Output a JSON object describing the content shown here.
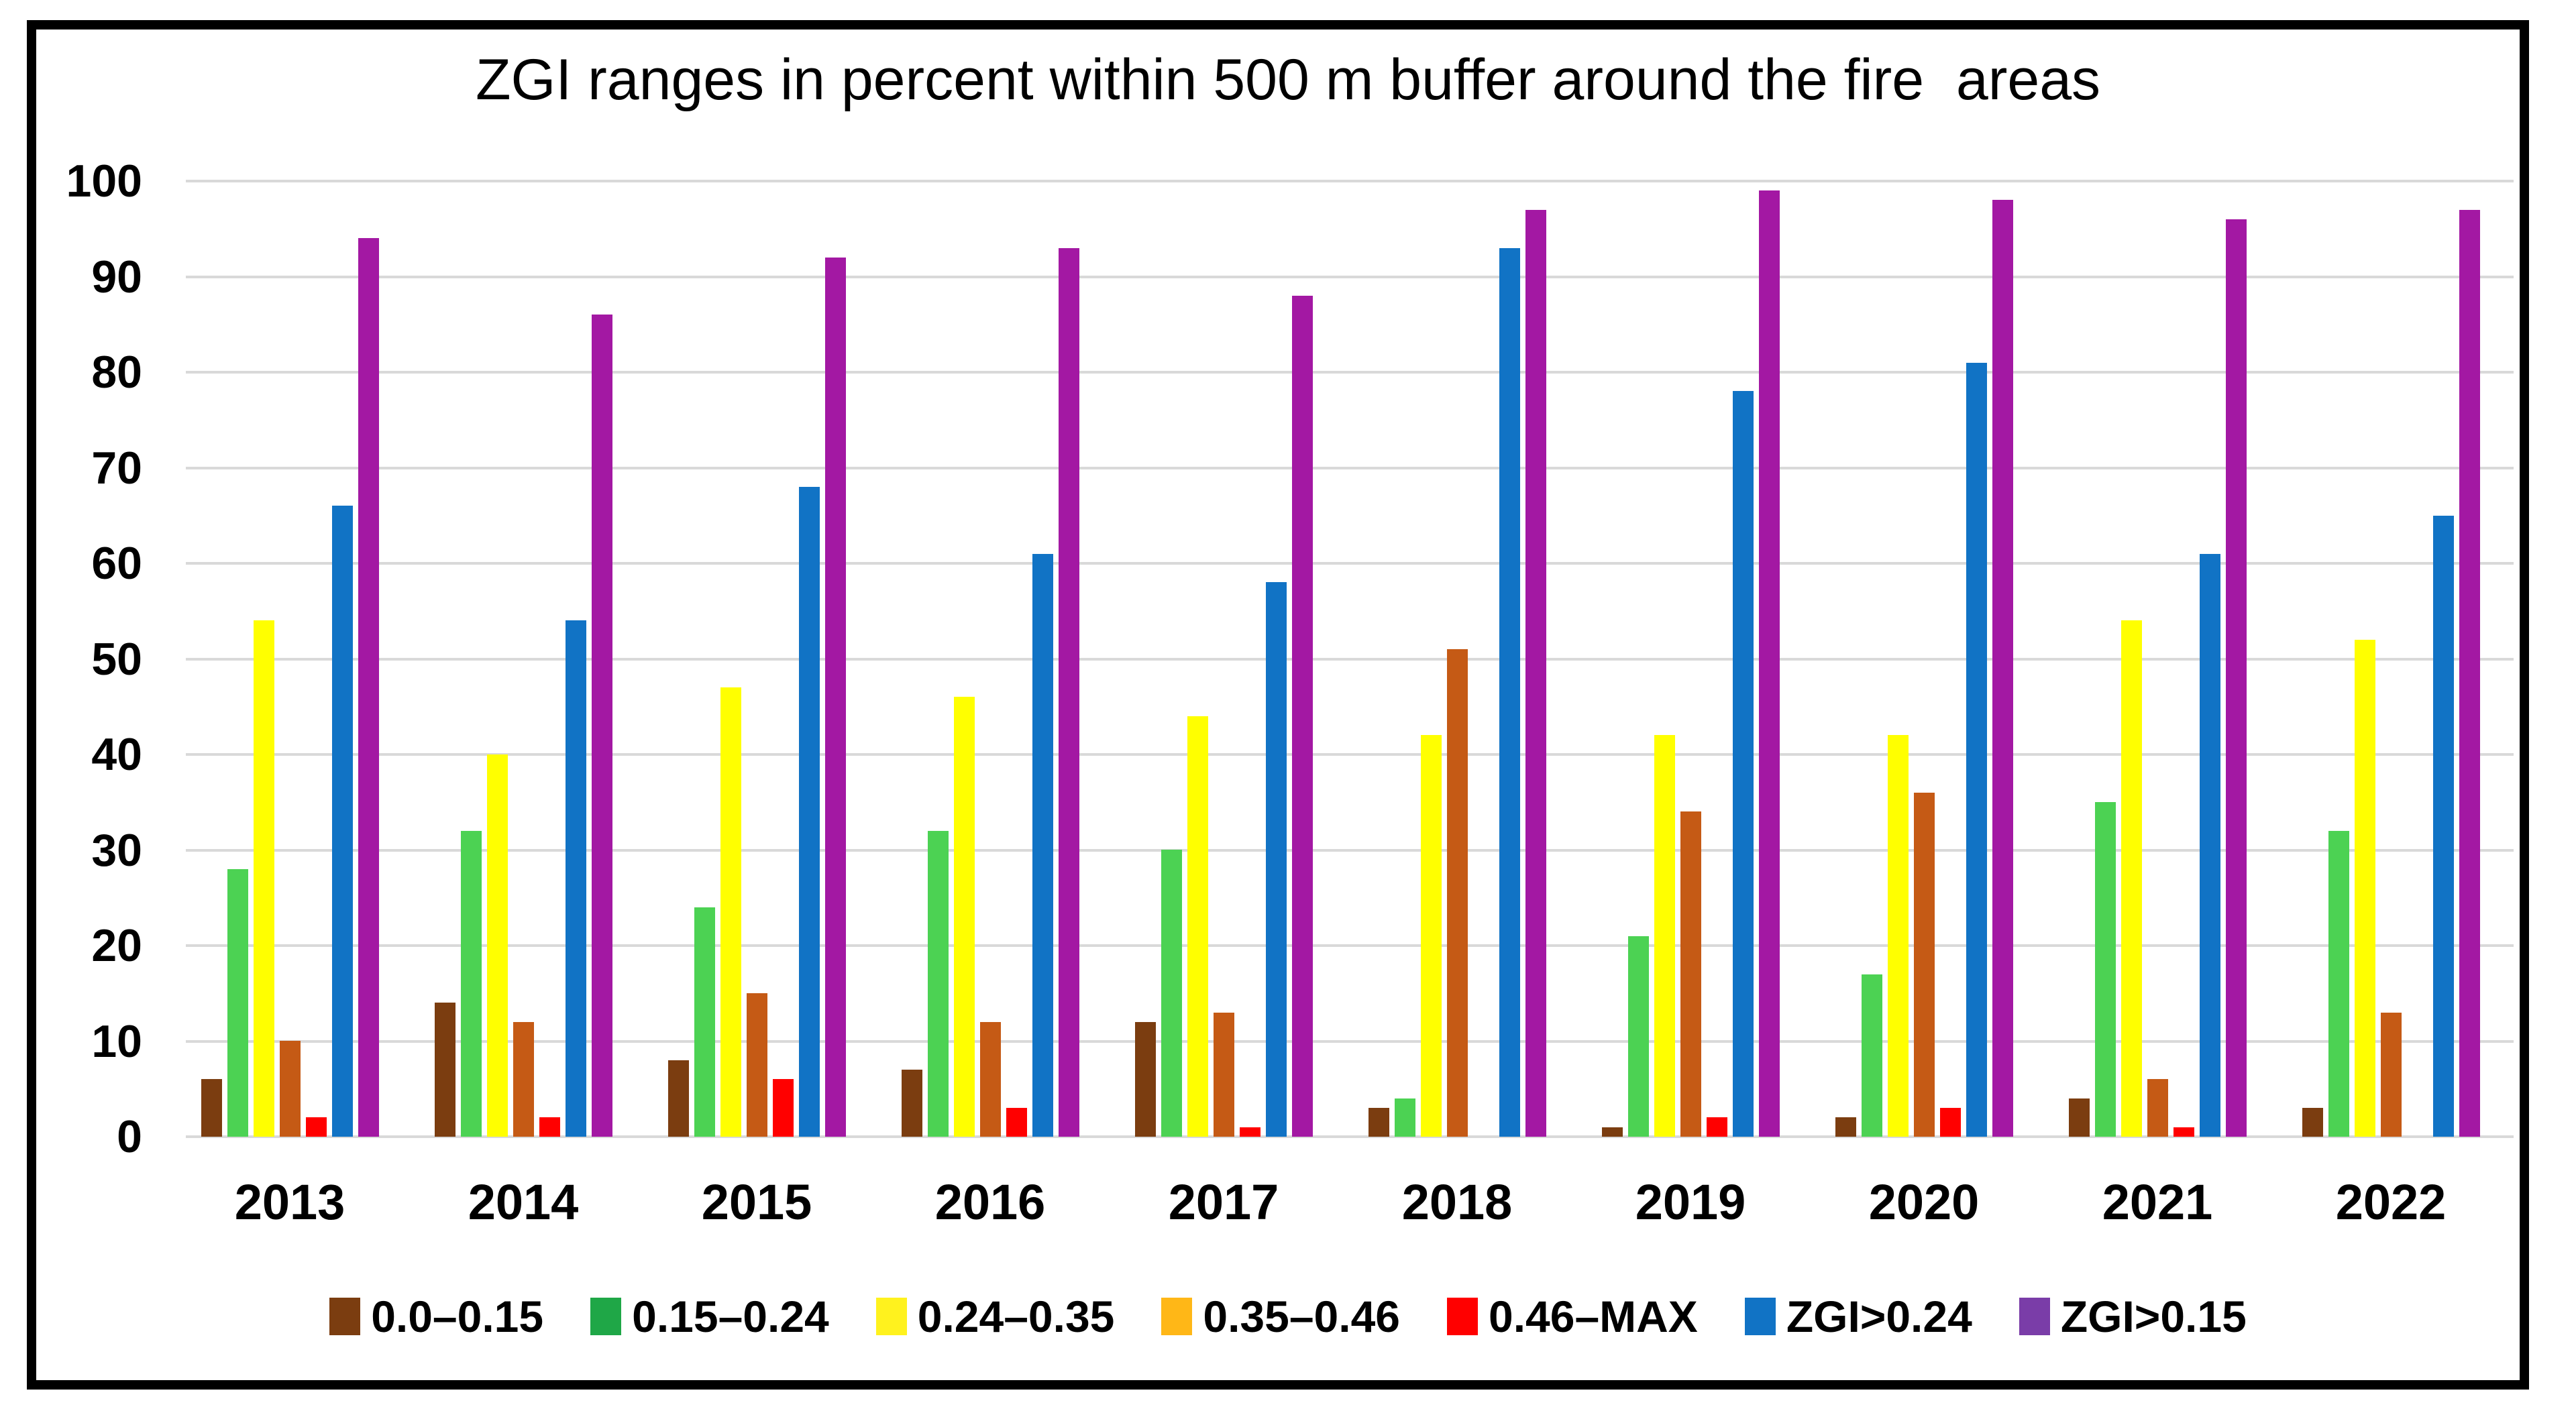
{
  "title": "ZGI ranges in percent within 500 m buffer around the fire  areas",
  "chart_data": {
    "type": "bar",
    "title": "ZGI ranges in percent within 500 m buffer around the fire  areas",
    "xlabel": "",
    "ylabel": "",
    "ylim": [
      0,
      100
    ],
    "yticks": [
      0,
      10,
      20,
      30,
      40,
      50,
      60,
      70,
      80,
      90,
      100
    ],
    "grid": true,
    "legend_position": "bottom",
    "gridline_color": "#d9d9d9",
    "categories": [
      "2013",
      "2014",
      "2015",
      "2016",
      "2017",
      "2018",
      "2019",
      "2020",
      "2021",
      "2022"
    ],
    "series": [
      {
        "name": "0.0–0.15",
        "color": "#7b3d10",
        "legend_color": "#7b3d10",
        "values": [
          6,
          14,
          8,
          7,
          12,
          3,
          1,
          2,
          4,
          3
        ]
      },
      {
        "name": "0.15–0.24",
        "color": "#4cd253",
        "legend_color": "#1fa747",
        "values": [
          28,
          32,
          24,
          32,
          30,
          4,
          21,
          17,
          35,
          32
        ]
      },
      {
        "name": "0.24–0.35",
        "color": "#ffff00",
        "legend_color": "#fff21e",
        "values": [
          54,
          40,
          47,
          46,
          44,
          42,
          42,
          42,
          54,
          52
        ]
      },
      {
        "name": "0.35–0.46",
        "color": "#c55a15",
        "legend_color": "#ffb717",
        "values": [
          10,
          12,
          15,
          12,
          13,
          51,
          34,
          36,
          6,
          13
        ]
      },
      {
        "name": "0.46–MAX",
        "color": "#ff0000",
        "legend_color": "#ff0000",
        "values": [
          2,
          2,
          6,
          3,
          1,
          0,
          2,
          3,
          1,
          0
        ]
      },
      {
        "name": "ZGI>0.24",
        "color": "#1173c5",
        "legend_color": "#1173c5",
        "values": [
          66,
          54,
          68,
          61,
          58,
          93,
          78,
          81,
          61,
          65
        ]
      },
      {
        "name": "ZGI>0.15",
        "color": "#a318a3",
        "legend_color": "#7a3da8",
        "values": [
          94,
          86,
          92,
          93,
          88,
          97,
          99,
          98,
          96,
          97
        ]
      }
    ]
  }
}
